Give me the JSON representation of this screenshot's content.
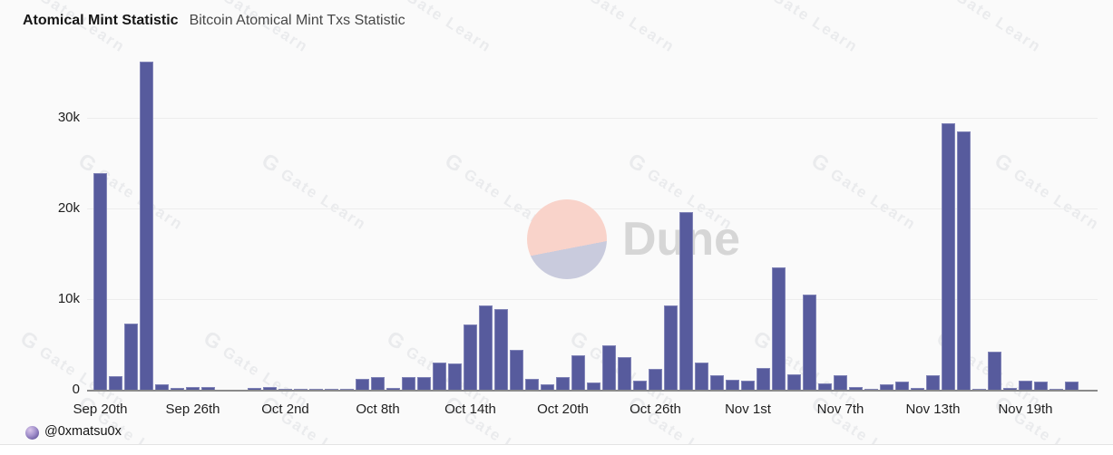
{
  "header": {
    "title": "Atomical Mint Statistic",
    "subtitle": "Bitcoin Atomical Mint Txs Statistic"
  },
  "dune_watermark": {
    "label": "Dune"
  },
  "site_watermark": {
    "logo_glyph": "G",
    "brand": "Gate Learn"
  },
  "footer": {
    "handle": "@0xmatsu0x"
  },
  "colors": {
    "bar": "#575b9d",
    "bar_border": "#8184b7",
    "background": "#fafafa",
    "gridline": "#ededed",
    "axis": "#8a8a8a",
    "dune_circle_pink": "#f9d3ca",
    "dune_circle_lavender": "#c9cbdd",
    "dune_text": "#d6d6d6"
  },
  "chart_data": {
    "type": "bar",
    "title": "Atomical Mint Statistic",
    "subtitle": "Bitcoin Atomical Mint Txs Statistic",
    "xlabel": "",
    "ylabel": "",
    "ylim": [
      0,
      37000
    ],
    "grid": true,
    "legend": false,
    "y_ticks": [
      {
        "label": "0",
        "value": 0
      },
      {
        "label": "10k",
        "value": 10000
      },
      {
        "label": "20k",
        "value": 20000
      },
      {
        "label": "30k",
        "value": 30000
      }
    ],
    "x_tick_labels": [
      "Sep 20th",
      "Sep 26th",
      "Oct 2nd",
      "Oct 8th",
      "Oct 14th",
      "Oct 20th",
      "Oct 26th",
      "Nov 1st",
      "Nov 7th",
      "Nov 13th",
      "Nov 19th"
    ],
    "x_tick_interval_days": 6,
    "x": [
      "Sep 20",
      "Sep 21",
      "Sep 22",
      "Sep 23",
      "Sep 24",
      "Sep 25",
      "Sep 26",
      "Sep 27",
      "Sep 28",
      "Sep 29",
      "Sep 30",
      "Oct 1",
      "Oct 2",
      "Oct 3",
      "Oct 4",
      "Oct 5",
      "Oct 6",
      "Oct 7",
      "Oct 8",
      "Oct 9",
      "Oct 10",
      "Oct 11",
      "Oct 12",
      "Oct 13",
      "Oct 14",
      "Oct 15",
      "Oct 16",
      "Oct 17",
      "Oct 18",
      "Oct 19",
      "Oct 20",
      "Oct 21",
      "Oct 22",
      "Oct 23",
      "Oct 24",
      "Oct 25",
      "Oct 26",
      "Oct 27",
      "Oct 28",
      "Oct 29",
      "Oct 30",
      "Oct 31",
      "Nov 1",
      "Nov 2",
      "Nov 3",
      "Nov 4",
      "Nov 5",
      "Nov 6",
      "Nov 7",
      "Nov 8",
      "Nov 9",
      "Nov 10",
      "Nov 11",
      "Nov 12",
      "Nov 13",
      "Nov 14",
      "Nov 15",
      "Nov 16",
      "Nov 17",
      "Nov 18",
      "Nov 19",
      "Nov 20",
      "Nov 21",
      "Nov 22"
    ],
    "values": [
      23900,
      1500,
      7300,
      36200,
      600,
      250,
      300,
      300,
      0,
      0,
      250,
      300,
      150,
      100,
      150,
      100,
      120,
      1200,
      1400,
      250,
      1400,
      1450,
      3000,
      2900,
      7200,
      9300,
      8900,
      4400,
      1200,
      600,
      1400,
      3800,
      800,
      4900,
      3600,
      1000,
      2300,
      9300,
      19600,
      3000,
      1600,
      1100,
      1000,
      2400,
      13500,
      1700,
      10500,
      700,
      1600,
      300,
      100,
      600,
      900,
      200,
      1600,
      29400,
      28500,
      100,
      4200,
      250,
      1000,
      900,
      100,
      900
    ]
  }
}
